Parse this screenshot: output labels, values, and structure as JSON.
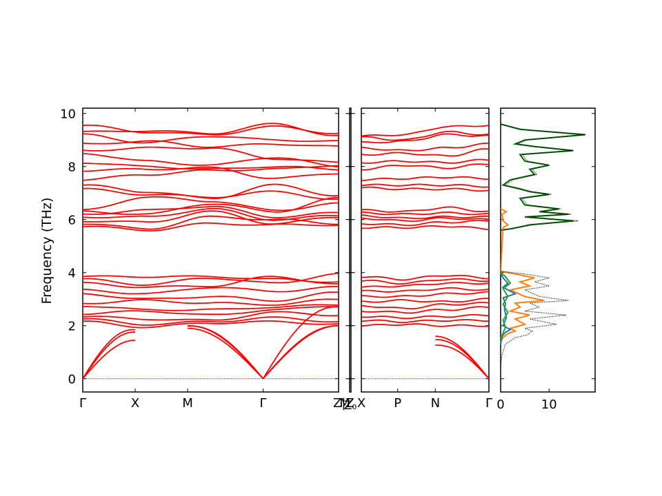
{
  "chart_data": {
    "type": "line",
    "ylabel": "Frequency (THz)",
    "ylim": [
      -0.5,
      10.2
    ],
    "yticks": [
      0,
      2,
      4,
      6,
      8,
      10
    ],
    "ytick_labels": [
      "0",
      "2",
      "4",
      "6",
      "8",
      "10"
    ],
    "grid": false,
    "band_color": "#ff0000",
    "zero_line_color": "#0000ff",
    "panels": [
      {
        "id": "path1",
        "path_ticks": [
          {
            "label": "Γ",
            "pos": 0.0
          },
          {
            "label": "X",
            "pos": 0.205
          },
          {
            "label": "M",
            "pos": 0.41
          },
          {
            "label": "Γ",
            "pos": 0.705
          },
          {
            "label": "Z|Z",
            "pos": 1.0
          }
        ]
      },
      {
        "id": "path2",
        "path_ticks": [
          {
            "label": "M",
            "pos": 0.0
          }
        ]
      },
      {
        "id": "path3",
        "path_ticks": [
          {
            "label": "X",
            "pos": 0.0
          },
          {
            "label": "P",
            "pos": 0.285
          },
          {
            "label": "N",
            "pos": 0.58
          },
          {
            "label": "Γ",
            "pos": 1.0
          }
        ]
      }
    ],
    "path2_extra_label": "Z₀",
    "acoustic_rises": {
      "path1": [
        {
          "from": 0.0,
          "to": 0.205,
          "end_freqs": [
            1.45,
            1.85,
            2.05
          ]
        },
        {
          "from": 0.705,
          "to": 0.41,
          "end_freqs": [
            1.9,
            2.1,
            2.2
          ]
        },
        {
          "from": 0.705,
          "to": 1.0,
          "end_freqs": [
            2.0,
            2.1,
            3.0
          ]
        }
      ],
      "path3": [
        {
          "from": 1.0,
          "to": 0.58,
          "end_freqs": [
            1.6,
            1.55,
            1.4
          ]
        }
      ]
    },
    "band_levels_path1": [
      [
        9.55,
        9.3,
        9.2,
        9.5,
        9.25
      ],
      [
        9.3,
        9.35,
        9.25,
        9.6,
        9.15
      ],
      [
        9.2,
        8.9,
        9.15,
        9.0,
        8.95
      ],
      [
        8.85,
        8.95,
        8.75,
        8.85,
        8.75
      ],
      [
        8.6,
        8.7,
        8.7,
        8.3,
        8.15
      ],
      [
        8.5,
        8.2,
        8.05,
        8.35,
        8.0
      ],
      [
        8.15,
        8.0,
        7.9,
        8.0,
        7.9
      ],
      [
        7.85,
        7.9,
        7.95,
        7.55,
        7.75
      ],
      [
        7.5,
        7.7,
        7.85,
        7.9,
        8.05
      ],
      [
        7.3,
        7.05,
        6.8,
        7.3,
        6.9
      ],
      [
        7.15,
        6.95,
        6.85,
        7.05,
        6.75
      ],
      [
        6.35,
        6.85,
        6.7,
        6.35,
        6.6
      ],
      [
        6.3,
        6.2,
        6.6,
        6.3,
        6.8
      ],
      [
        6.2,
        6.35,
        6.5,
        6.1,
        6.25
      ],
      [
        6.1,
        6.1,
        6.4,
        6.0,
        6.15
      ],
      [
        5.95,
        5.9,
        6.3,
        5.85,
        6.1
      ],
      [
        5.85,
        5.65,
        6.1,
        6.0,
        5.85
      ],
      [
        5.75,
        5.6,
        5.85,
        5.8,
        5.8
      ],
      [
        3.85,
        3.85,
        3.85,
        3.75,
        3.65
      ],
      [
        3.75,
        3.55,
        3.8,
        3.6,
        3.95
      ],
      [
        3.6,
        3.45,
        3.5,
        3.85,
        3.55
      ],
      [
        3.35,
        3.2,
        3.45,
        3.3,
        3.45
      ],
      [
        3.2,
        3.0,
        3.1,
        2.95,
        3.25
      ],
      [
        2.85,
        2.95,
        2.85,
        2.8,
        3.0
      ],
      [
        2.75,
        2.6,
        2.6,
        2.7,
        2.8
      ],
      [
        2.45,
        2.55,
        2.4,
        2.6,
        2.75
      ],
      [
        2.35,
        2.25,
        2.2,
        2.5,
        2.4
      ],
      [
        2.25,
        2.05,
        2.15,
        2.3,
        2.15
      ],
      [
        2.15,
        1.95,
        2.1,
        2.15,
        2.05
      ]
    ],
    "band_levels_path3": [
      [
        9.15,
        9.2,
        9.5,
        9.55
      ],
      [
        9.1,
        9.0,
        9.3,
        9.2
      ],
      [
        8.9,
        8.95,
        9.2,
        9.15
      ],
      [
        8.7,
        8.6,
        8.7,
        8.85
      ],
      [
        8.45,
        8.5,
        8.4,
        8.65
      ],
      [
        8.15,
        8.2,
        8.15,
        8.25
      ],
      [
        7.9,
        8.05,
        7.95,
        8.1
      ],
      [
        7.5,
        7.55,
        7.6,
        7.55
      ],
      [
        7.3,
        7.3,
        7.3,
        7.25
      ],
      [
        7.2,
        7.15,
        7.15,
        7.1
      ],
      [
        6.35,
        6.3,
        6.45,
        6.3
      ],
      [
        6.25,
        6.2,
        6.25,
        6.2
      ],
      [
        6.15,
        6.05,
        6.1,
        6.1
      ],
      [
        6.05,
        5.95,
        6.05,
        6.0
      ],
      [
        5.85,
        5.8,
        5.9,
        5.95
      ],
      [
        5.7,
        5.7,
        5.75,
        5.65
      ],
      [
        3.85,
        3.75,
        3.9,
        3.8
      ],
      [
        3.7,
        3.6,
        3.75,
        3.7
      ],
      [
        3.45,
        3.5,
        3.6,
        3.6
      ],
      [
        3.3,
        3.3,
        3.4,
        3.35
      ],
      [
        3.1,
        3.1,
        3.2,
        3.25
      ],
      [
        2.9,
        2.95,
        2.9,
        3.0
      ],
      [
        2.75,
        2.65,
        2.8,
        2.85
      ],
      [
        2.55,
        2.5,
        2.6,
        2.7
      ],
      [
        2.35,
        2.3,
        2.35,
        2.4
      ],
      [
        2.2,
        2.15,
        2.2,
        2.2
      ],
      [
        2.0,
        2.05,
        2.0,
        2.0
      ]
    ],
    "dos": {
      "xlim": [
        0,
        19.5
      ],
      "xticks": [
        0,
        10
      ],
      "xtick_labels": [
        "0",
        "10"
      ],
      "series": [
        {
          "color": "#006400",
          "style": "solid",
          "partial": true,
          "points": [
            [
              9.6,
              0
            ],
            [
              9.4,
              4
            ],
            [
              9.2,
              17.5
            ],
            [
              9.0,
              5
            ],
            [
              8.85,
              3
            ],
            [
              8.75,
              7
            ],
            [
              8.6,
              15
            ],
            [
              8.45,
              4
            ],
            [
              8.2,
              5
            ],
            [
              8.05,
              10
            ],
            [
              7.9,
              6
            ],
            [
              7.7,
              7
            ],
            [
              7.5,
              2
            ],
            [
              7.3,
              0.5
            ],
            [
              7.15,
              4
            ],
            [
              7.05,
              6
            ],
            [
              6.95,
              10
            ],
            [
              6.8,
              4
            ],
            [
              6.55,
              5
            ],
            [
              6.4,
              12
            ],
            [
              6.3,
              8
            ],
            [
              6.2,
              14
            ],
            [
              6.1,
              5
            ],
            [
              5.95,
              15
            ],
            [
              5.8,
              6
            ],
            [
              5.65,
              2
            ],
            [
              5.6,
              0
            ]
          ]
        },
        {
          "color": "#ff7f0e",
          "style": "solid",
          "partial": true,
          "points": [
            [
              6.4,
              0
            ],
            [
              6.3,
              1.2
            ],
            [
              6.2,
              0.3
            ],
            [
              5.95,
              0.5
            ],
            [
              5.8,
              1.5
            ],
            [
              5.7,
              0.5
            ],
            [
              4.05,
              0
            ],
            [
              3.95,
              3
            ],
            [
              3.8,
              7
            ],
            [
              3.65,
              4
            ],
            [
              3.5,
              6
            ],
            [
              3.35,
              2
            ],
            [
              3.1,
              5
            ],
            [
              2.95,
              9
            ],
            [
              2.85,
              3
            ],
            [
              2.7,
              4
            ],
            [
              2.55,
              2
            ],
            [
              2.4,
              6
            ],
            [
              2.25,
              3
            ],
            [
              2.05,
              5
            ],
            [
              1.9,
              2
            ],
            [
              1.8,
              3
            ],
            [
              1.7,
              1.5
            ],
            [
              1.55,
              0.5
            ],
            [
              1.4,
              0
            ]
          ]
        },
        {
          "color": "#1f77b4",
          "style": "solid",
          "partial": true,
          "points": [
            [
              4.0,
              0
            ],
            [
              3.8,
              0.5
            ],
            [
              3.6,
              1.5
            ],
            [
              3.45,
              0.5
            ],
            [
              3.3,
              2
            ],
            [
              3.2,
              3
            ],
            [
              3.05,
              0.5
            ],
            [
              2.85,
              1
            ],
            [
              2.6,
              0.8
            ],
            [
              2.3,
              1.2
            ],
            [
              2.0,
              0.5
            ],
            [
              1.85,
              2
            ],
            [
              1.75,
              1
            ],
            [
              1.6,
              0.3
            ],
            [
              1.3,
              0
            ]
          ]
        },
        {
          "color": "#2ca02c",
          "style": "solid",
          "partial": true,
          "points": [
            [
              4.0,
              0
            ],
            [
              3.85,
              1
            ],
            [
              3.6,
              2
            ],
            [
              3.4,
              0.5
            ],
            [
              3.1,
              1.5
            ],
            [
              2.8,
              0.5
            ],
            [
              2.5,
              1.5
            ],
            [
              2.2,
              0.5
            ],
            [
              1.95,
              1
            ],
            [
              1.5,
              0
            ]
          ]
        },
        {
          "color": "#000000",
          "style": "dotted",
          "partial": false,
          "points": [
            [
              9.6,
              0
            ],
            [
              9.4,
              4.5
            ],
            [
              9.2,
              17.5
            ],
            [
              9.0,
              5.5
            ],
            [
              8.85,
              3.5
            ],
            [
              8.75,
              7.5
            ],
            [
              8.6,
              15
            ],
            [
              8.45,
              4.5
            ],
            [
              8.2,
              5.5
            ],
            [
              8.05,
              10
            ],
            [
              7.9,
              6.5
            ],
            [
              7.7,
              7.5
            ],
            [
              7.5,
              2.5
            ],
            [
              7.3,
              1
            ],
            [
              7.15,
              4.5
            ],
            [
              7.05,
              6.5
            ],
            [
              6.95,
              10.5
            ],
            [
              6.8,
              4.5
            ],
            [
              6.55,
              5.5
            ],
            [
              6.4,
              12.5
            ],
            [
              6.3,
              8.5
            ],
            [
              6.2,
              14.5
            ],
            [
              6.1,
              5.5
            ],
            [
              5.95,
              16
            ],
            [
              5.8,
              6.5
            ],
            [
              5.65,
              2.5
            ],
            [
              5.6,
              0
            ],
            [
              4.05,
              0
            ],
            [
              3.95,
              5
            ],
            [
              3.8,
              10
            ],
            [
              3.65,
              7
            ],
            [
              3.5,
              10
            ],
            [
              3.35,
              5
            ],
            [
              3.1,
              8
            ],
            [
              2.95,
              14
            ],
            [
              2.85,
              6
            ],
            [
              2.7,
              8
            ],
            [
              2.55,
              5
            ],
            [
              2.4,
              13.5
            ],
            [
              2.25,
              6
            ],
            [
              2.05,
              11.5
            ],
            [
              1.9,
              5
            ],
            [
              1.8,
              6.5
            ],
            [
              1.65,
              5.5
            ],
            [
              1.55,
              3
            ],
            [
              1.3,
              1
            ],
            [
              0.9,
              0.3
            ],
            [
              0.5,
              0
            ]
          ]
        }
      ]
    }
  }
}
